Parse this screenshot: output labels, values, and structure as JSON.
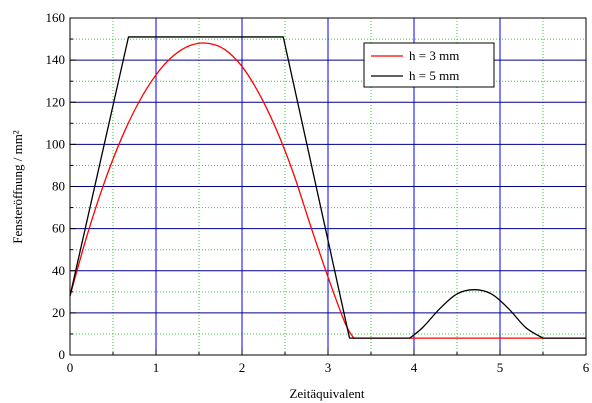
{
  "chart_data": {
    "type": "line",
    "xlabel": "Zeitäquivalent",
    "ylabel": "Fensteröffnung / mm²",
    "xlim": [
      0,
      6
    ],
    "ylim": [
      0,
      160
    ],
    "x_ticks": [
      0,
      1,
      2,
      3,
      4,
      5,
      6
    ],
    "x_tick_labels": [
      "0",
      "1",
      "2",
      "3",
      "4",
      "5",
      "6"
    ],
    "y_ticks": [
      0,
      20,
      40,
      60,
      80,
      100,
      120,
      140,
      160
    ],
    "y_tick_labels": [
      "0",
      "20",
      "40",
      "60",
      "80",
      "100",
      "120",
      "140",
      "160"
    ],
    "grid": {
      "major_x_color": "#0000ff",
      "major_y_color": "#00008b",
      "minor_color": "#33cc33",
      "minor_style": "dotted"
    },
    "legend_position": "top-right",
    "series": [
      {
        "name": "h = 3 mm",
        "color": "#ff0000",
        "x": [
          0,
          0.2,
          0.4,
          0.6,
          0.8,
          1.0,
          1.2,
          1.4,
          1.6,
          1.8,
          2.0,
          2.2,
          2.4,
          2.6,
          2.8,
          3.0,
          3.2,
          3.3,
          4.0,
          5.0,
          6.0
        ],
        "y": [
          28,
          57,
          82,
          103,
          120,
          133,
          142,
          147,
          148,
          145,
          137,
          124,
          107,
          86,
          61,
          37,
          15,
          8,
          8,
          8,
          8
        ]
      },
      {
        "name": "h = 5 mm",
        "color": "#000000",
        "x": [
          0,
          0.68,
          2.48,
          3.25,
          3.95,
          4.1,
          4.3,
          4.5,
          4.7,
          4.9,
          5.1,
          5.3,
          5.5,
          6.0
        ],
        "y": [
          28,
          151,
          151,
          8,
          8,
          13,
          22,
          29,
          31,
          29,
          22,
          13,
          8,
          8
        ]
      }
    ]
  }
}
